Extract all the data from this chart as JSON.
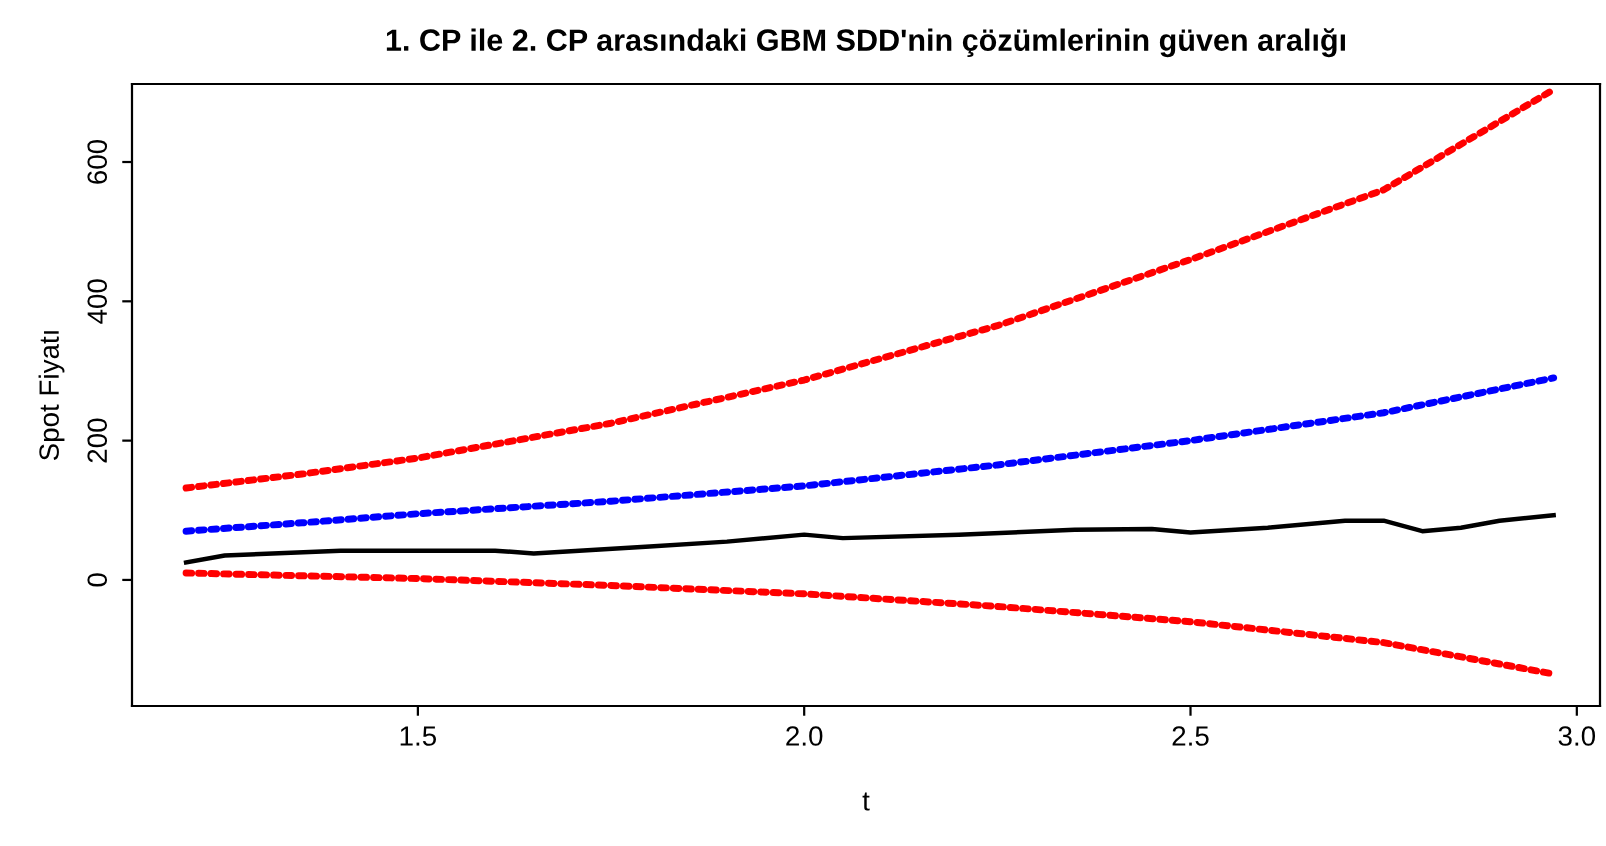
{
  "chart_data": {
    "type": "line",
    "title": "1. CP ile 2. CP arasındaki GBM SDD'nin çözümlerinin güven aralığı",
    "xlabel": "t",
    "ylabel": "Spot Fiyatı",
    "xlim": [
      1.13,
      3.03
    ],
    "ylim": [
      -181,
      712
    ],
    "xticks": [
      {
        "value": 1.5,
        "label": "1.5"
      },
      {
        "value": 2.0,
        "label": "2.0"
      },
      {
        "value": 2.5,
        "label": "2.5"
      },
      {
        "value": 3.0,
        "label": "3.0"
      }
    ],
    "yticks": [
      0,
      200,
      400,
      600
    ],
    "grid": false,
    "series": [
      {
        "color": "#ff0000",
        "line_style": "dotted",
        "x": [
          1.2,
          1.35,
          1.5,
          1.75,
          2.0,
          2.25,
          2.5,
          2.75,
          2.97
        ],
        "values": [
          132,
          152,
          175,
          225,
          287,
          365,
          460,
          560,
          704
        ]
      },
      {
        "color": "#0000ff",
        "line_style": "dotted",
        "x": [
          1.2,
          1.35,
          1.5,
          1.75,
          2.0,
          2.25,
          2.5,
          2.75,
          2.97
        ],
        "values": [
          70,
          82,
          95,
          113,
          135,
          165,
          200,
          240,
          290
        ]
      },
      {
        "color": "#000000",
        "line_style": "solid",
        "x": [
          1.2,
          1.25,
          1.4,
          1.6,
          1.65,
          1.8,
          1.9,
          2.0,
          2.05,
          2.2,
          2.35,
          2.45,
          2.5,
          2.6,
          2.7,
          2.75,
          2.8,
          2.85,
          2.9,
          2.97
        ],
        "values": [
          25,
          35,
          42,
          42,
          38,
          48,
          55,
          65,
          60,
          65,
          72,
          73,
          68,
          75,
          85,
          85,
          70,
          75,
          85,
          93
        ]
      },
      {
        "color": "#ff0000",
        "line_style": "dotted",
        "x": [
          1.2,
          1.35,
          1.5,
          1.75,
          2.0,
          2.25,
          2.5,
          2.75,
          2.97
        ],
        "values": [
          10,
          6,
          2,
          -8,
          -20,
          -38,
          -60,
          -90,
          -135
        ]
      }
    ]
  }
}
